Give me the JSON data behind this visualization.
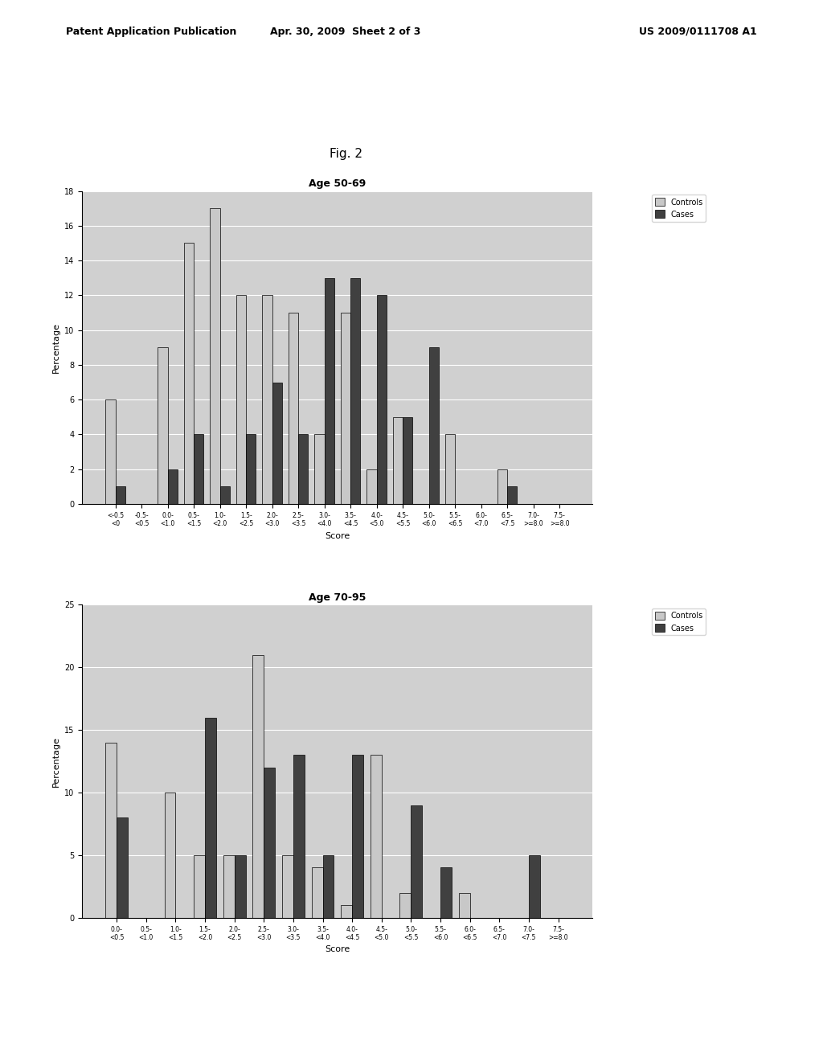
{
  "fig_label": "Fig. 2",
  "chart1": {
    "title": "Age 50-69",
    "ylabel": "Percentage",
    "xlabel": "Score",
    "ylim": [
      0,
      18
    ],
    "yticks": [
      0,
      2,
      4,
      6,
      8,
      10,
      12,
      14,
      16,
      18
    ],
    "categories_line1": [
      "<-0.5",
      "-0.5-",
      "0.0-",
      "0.5-",
      "1.0-",
      "1.5-",
      "2.0-",
      "2.5-",
      "3.0-",
      "3.5-",
      "4.0-",
      "4.5-",
      "5.0-",
      "5.5-",
      "6.0-",
      "6.5-",
      "7.0-",
      "7.5-"
    ],
    "categories_line2": [
      "<0",
      "<0.5",
      "<1.0",
      "<1.5",
      "<2.0",
      "<2.5",
      "<3.0",
      "<3.5",
      "<4.0",
      "<4.5",
      "<5.0",
      "<5.5",
      "<6.0",
      "<6.5",
      "<7.0",
      "<7.5",
      ">=8.0",
      ">=8.0"
    ],
    "controls": [
      6,
      0,
      9,
      15,
      17,
      12,
      12,
      11,
      4,
      11,
      2,
      5,
      0,
      4,
      0,
      2,
      0,
      0
    ],
    "cases": [
      1,
      0,
      2,
      4,
      1,
      4,
      7,
      4,
      13,
      13,
      12,
      5,
      9,
      0,
      0,
      1,
      0,
      0
    ]
  },
  "chart2": {
    "title": "Age 70-95",
    "ylabel": "Percentage",
    "xlabel": "Score",
    "ylim": [
      0,
      25
    ],
    "yticks": [
      0,
      5,
      10,
      15,
      20,
      25
    ],
    "categories_line1": [
      "0.0-",
      "0.5-",
      "1.0-",
      "1.5-",
      "2.0-",
      "2.5-",
      "3.0-",
      "3.5-",
      "4.0-",
      "4.5-",
      "5.0-",
      "5.5-",
      "6.0-",
      "6.5-",
      "7.0-",
      "7.5-"
    ],
    "categories_line2": [
      "<0.5",
      "<1.0",
      "<1.5",
      "<2.0",
      "<2.5",
      "<3.0",
      "<3.5",
      "<4.0",
      "<4.5",
      "<5.0",
      "<5.5",
      "<6.0",
      "<6.5",
      "<7.0",
      "<7.5",
      ">=8.0"
    ],
    "controls": [
      14,
      0,
      10,
      5,
      5,
      21,
      5,
      4,
      1,
      13,
      2,
      0,
      2,
      0,
      0,
      0
    ],
    "cases": [
      8,
      0,
      0,
      16,
      5,
      12,
      13,
      5,
      13,
      0,
      9,
      4,
      0,
      0,
      5,
      0
    ]
  },
  "controls_color": "#c8c8c8",
  "cases_color": "#404040",
  "background_color": "#d0d0d0",
  "header_left": "Patent Application Publication",
  "header_mid": "Apr. 30, 2009  Sheet 2 of 3",
  "header_right": "US 2009/0111708 A1"
}
